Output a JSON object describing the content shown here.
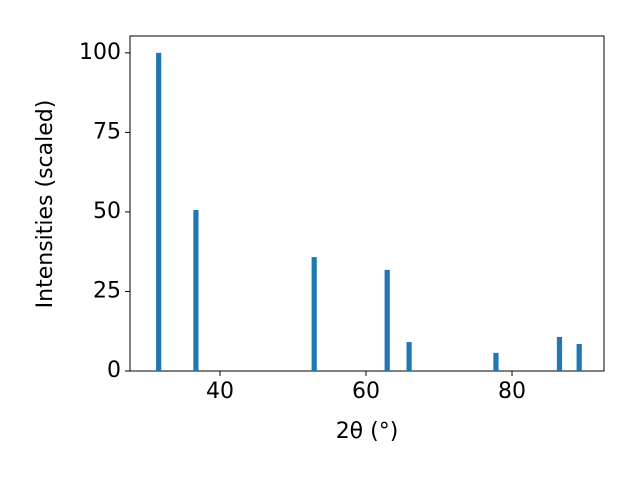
{
  "chart_data": {
    "type": "bar",
    "x": [
      31.6,
      36.7,
      52.9,
      62.9,
      65.9,
      77.8,
      86.5,
      89.2
    ],
    "values": [
      100,
      50.6,
      35.8,
      31.8,
      9.1,
      5.7,
      10.7,
      8.5
    ],
    "color": "#1f77b4",
    "xlim": [
      27.67,
      92.6
    ],
    "ylim": [
      0,
      105.3
    ],
    "xticks": [
      40,
      60,
      80
    ],
    "yticks": [
      0,
      25,
      50,
      75,
      100
    ],
    "xlabel": "2θ (°)",
    "ylabel": "Intensities (scaled)"
  }
}
